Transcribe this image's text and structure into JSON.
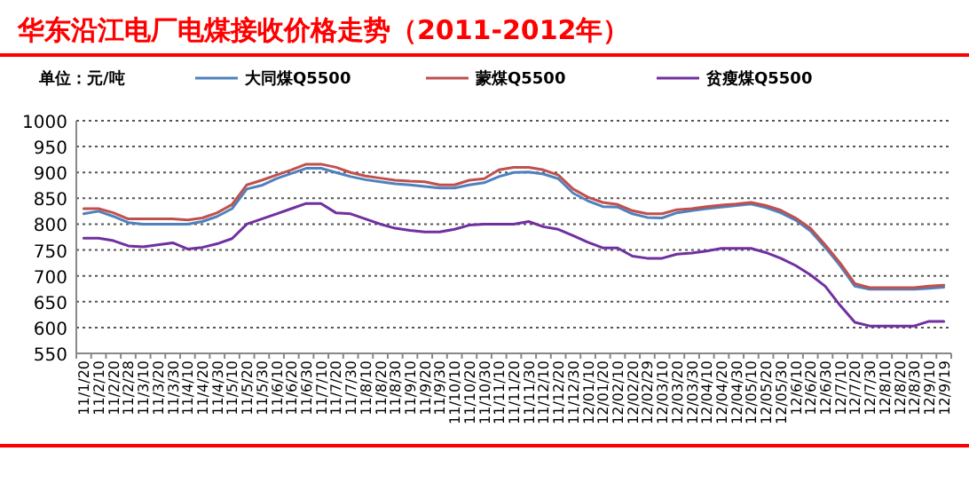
{
  "chart_data": {
    "type": "line",
    "title": "华东沿江电厂电煤接收价格走势（2011-2012年）",
    "annotations": [
      "单位：元/吨"
    ],
    "categories": [
      "11/1/20",
      "11/2/10",
      "11/2/20",
      "11/2/28",
      "11/3/10",
      "11/3/20",
      "11/3/30",
      "11/4/10",
      "11/4/20",
      "11/4/30",
      "11/5/10",
      "11/5/20",
      "11/5/30",
      "11/6/10",
      "11/6/20",
      "11/6/30",
      "11/7/10",
      "11/7/20",
      "11/7/30",
      "11/8/10",
      "11/8/20",
      "11/8/30",
      "11/9/10",
      "11/9/20",
      "11/9/30",
      "11/10/10",
      "11/10/20",
      "11/10/30",
      "11/11/10",
      "11/11/20",
      "11/11/30",
      "11/12/10",
      "11/12/20",
      "11/12/30",
      "12/01/10",
      "12/01/20",
      "12/02/10",
      "12/02/20",
      "12/02/29",
      "12/03/10",
      "12/03/20",
      "12/03/30",
      "12/04/10",
      "12/04/20",
      "12/04/30",
      "12/05/10",
      "12/05/20",
      "12/05/30",
      "12/6/10",
      "12/6/20",
      "12/6/30",
      "12/7/10",
      "12/7/20",
      "12/7/30",
      "12/8/10",
      "12/8/20",
      "12/8/30",
      "12/9/10",
      "12/9/19"
    ],
    "series": [
      {
        "name": "大同煤Q5500",
        "color": "#4f81bd",
        "values": [
          820,
          825,
          815,
          803,
          800,
          800,
          800,
          800,
          805,
          815,
          830,
          868,
          875,
          888,
          898,
          908,
          908,
          900,
          892,
          886,
          882,
          878,
          876,
          873,
          870,
          870,
          876,
          880,
          892,
          900,
          901,
          897,
          888,
          860,
          845,
          834,
          833,
          820,
          813,
          812,
          822,
          826,
          830,
          833,
          836,
          839,
          832,
          822,
          808,
          787,
          755,
          720,
          680,
          674,
          674,
          674,
          674,
          676,
          678
        ]
      },
      {
        "name": "蒙煤Q5500",
        "color": "#c0504d",
        "values": [
          830,
          830,
          822,
          810,
          810,
          810,
          810,
          808,
          812,
          822,
          838,
          876,
          885,
          895,
          905,
          916,
          916,
          910,
          900,
          893,
          889,
          885,
          883,
          882,
          876,
          876,
          885,
          888,
          905,
          910,
          910,
          905,
          895,
          868,
          852,
          842,
          838,
          826,
          820,
          820,
          828,
          830,
          834,
          837,
          839,
          842,
          836,
          827,
          812,
          792,
          760,
          725,
          685,
          677,
          677,
          677,
          677,
          680,
          682
        ]
      },
      {
        "name": "贫瘦煤Q5500",
        "color": "#7030a0",
        "values": [
          773,
          773,
          768,
          758,
          756,
          760,
          764,
          752,
          755,
          762,
          772,
          800,
          810,
          820,
          830,
          840,
          840,
          822,
          820,
          810,
          800,
          792,
          788,
          785,
          785,
          790,
          798,
          800,
          800,
          800,
          805,
          795,
          790,
          778,
          765,
          754,
          754,
          738,
          734,
          734,
          742,
          744,
          748,
          753,
          753,
          753,
          745,
          734,
          720,
          702,
          680,
          643,
          610,
          603,
          603,
          603,
          603,
          612,
          612
        ]
      }
    ],
    "ylim": [
      550,
      1000
    ],
    "yticks": [
      550,
      600,
      650,
      700,
      750,
      800,
      850,
      900,
      950,
      1000
    ],
    "grid": "y",
    "legend": "top",
    "marker": "none",
    "line_style": "solid"
  }
}
